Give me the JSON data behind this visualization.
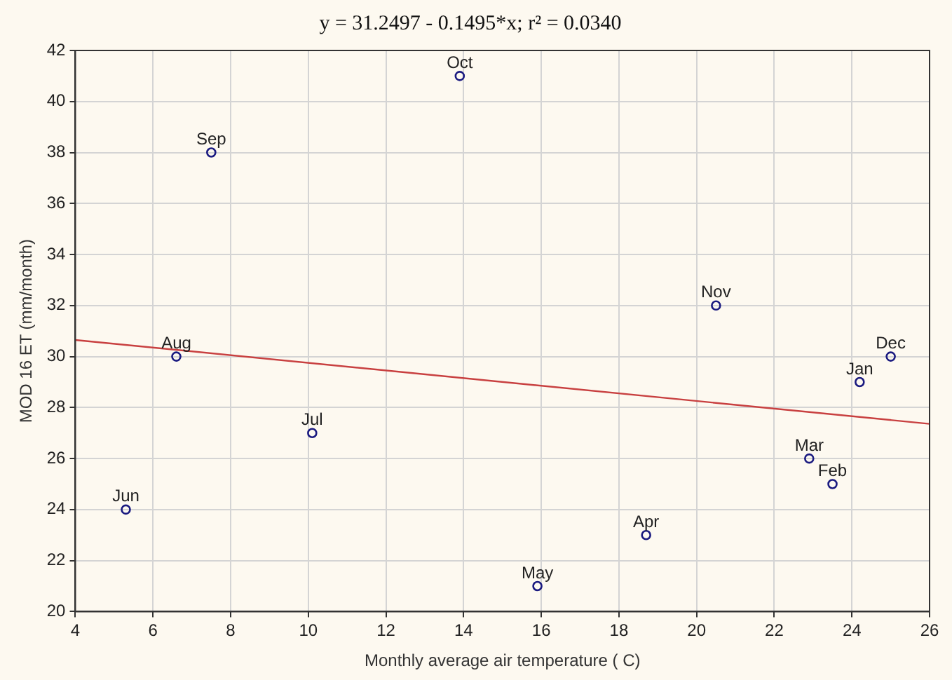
{
  "chart_data": {
    "type": "scatter",
    "title": "y = 31.2497 - 0.1495*x; r² = 0.0340",
    "xlabel": "Monthly average air temperature ( C)",
    "ylabel": "MOD 16 ET (mm/month)",
    "series": [
      {
        "color": "#1a1a80",
        "marker": "circle",
        "x": [
          5.3,
          6.6,
          7.5,
          10.1,
          13.9,
          15.9,
          18.7,
          20.5,
          22.9,
          23.5,
          24.2,
          25
        ],
        "values": [
          24,
          30,
          38,
          27,
          41,
          21,
          23,
          32,
          26,
          25,
          29,
          30
        ]
      },
      {
        "type": "line",
        "marker": "none",
        "color": "#c84040",
        "x": [
          4,
          26
        ],
        "values": [
          30.65,
          27.36
        ]
      }
    ],
    "annotations": [
      {
        "text": "Jun",
        "x": 5.3,
        "y": 24
      },
      {
        "text": "Aug",
        "x": 6.6,
        "y": 30
      },
      {
        "text": "Sep",
        "x": 7.5,
        "y": 38
      },
      {
        "text": "Jul",
        "x": 10.1,
        "y": 27
      },
      {
        "text": "Oct",
        "x": 13.9,
        "y": 41
      },
      {
        "text": "May",
        "x": 15.9,
        "y": 21
      },
      {
        "text": "Apr",
        "x": 18.7,
        "y": 23
      },
      {
        "text": "Nov",
        "x": 20.5,
        "y": 32
      },
      {
        "text": "Mar",
        "x": 22.9,
        "y": 26
      },
      {
        "text": "Feb",
        "x": 23.5,
        "y": 25
      },
      {
        "text": "Jan",
        "x": 24.2,
        "y": 29
      },
      {
        "text": "Dec",
        "x": 25,
        "y": 30
      }
    ],
    "xlim": [
      4,
      26
    ],
    "xticks": [
      4,
      6,
      8,
      10,
      12,
      14,
      16,
      18,
      20,
      22,
      24,
      26
    ],
    "ylim": [
      20,
      42
    ],
    "yticks": [
      20,
      22,
      24,
      26,
      28,
      30,
      32,
      34,
      36,
      38,
      40,
      42
    ],
    "grid": true,
    "legend": false
  }
}
